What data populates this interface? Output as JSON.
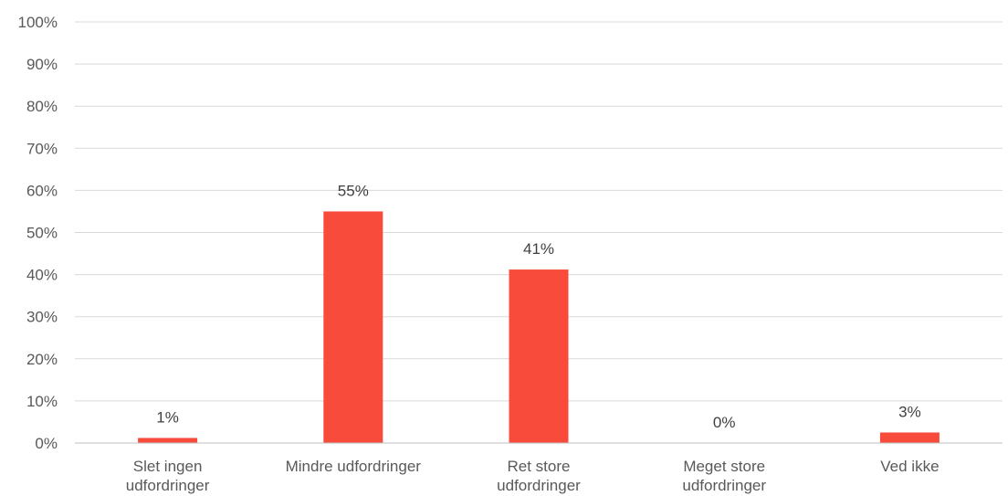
{
  "chart_data": {
    "type": "bar",
    "categories": [
      [
        "Slet ingen",
        "udfordringer"
      ],
      [
        "Mindre udfordringer"
      ],
      [
        "Ret store",
        "udfordringer"
      ],
      [
        "Meget store",
        "udfordringer"
      ],
      [
        "Ved ikke"
      ]
    ],
    "values": [
      1.2,
      55,
      41.2,
      0,
      2.5
    ],
    "data_labels": [
      "1%",
      "55%",
      "41%",
      "0%",
      "3%"
    ],
    "ylim": [
      0,
      100
    ],
    "yticks": [
      "0%",
      "10%",
      "20%",
      "30%",
      "40%",
      "50%",
      "60%",
      "70%",
      "80%",
      "90%",
      "100%"
    ],
    "grid": true,
    "legend": "none",
    "bar_color": "#f94b3c"
  }
}
